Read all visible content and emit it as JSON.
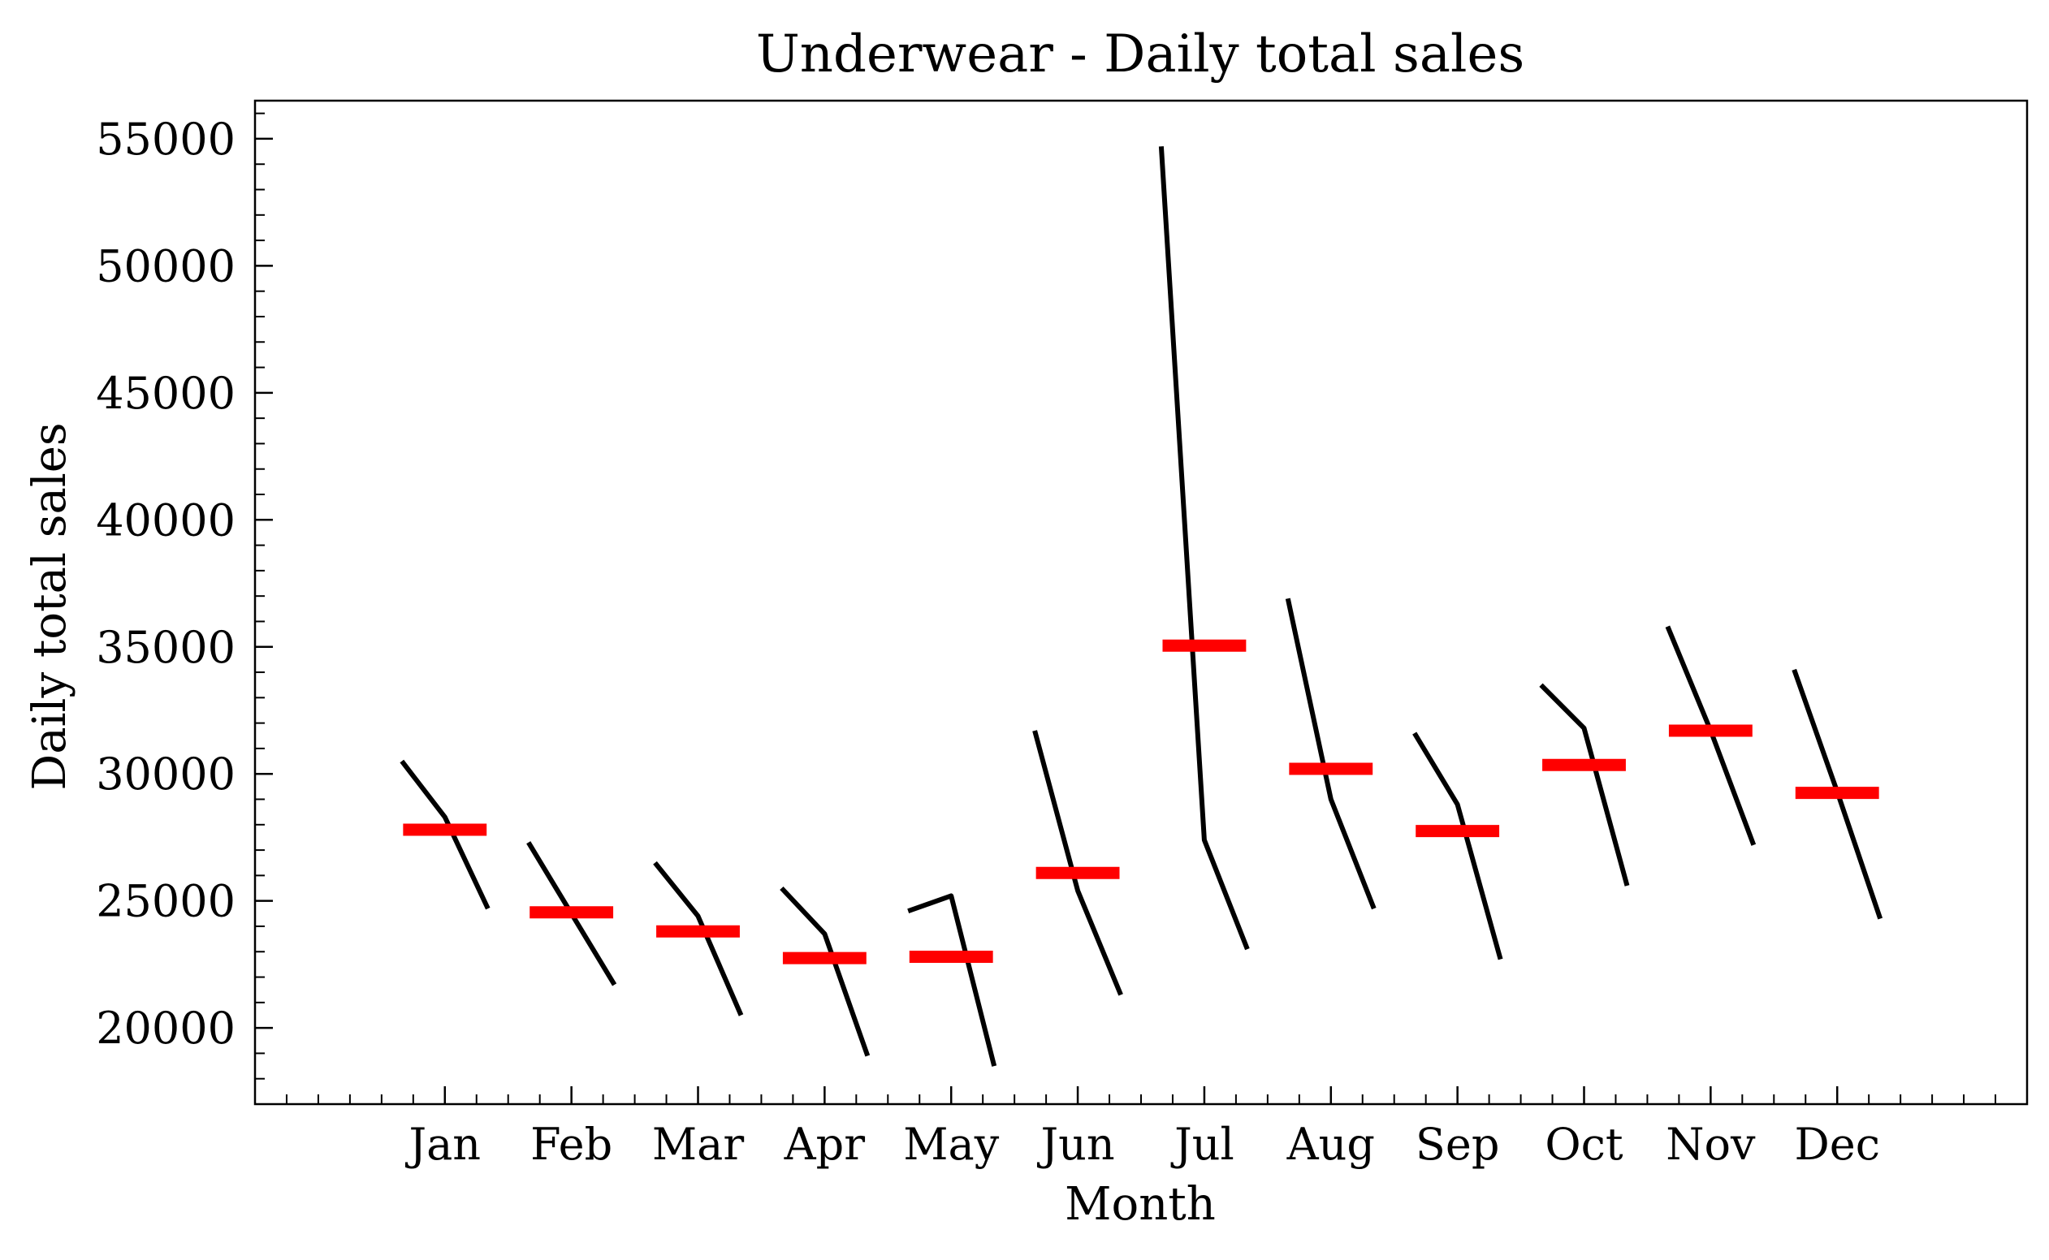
{
  "chart_data": {
    "type": "line",
    "subtype": "month_plot",
    "title": "Underwear - Daily total sales",
    "xlabel": "Month",
    "ylabel": "Daily total sales",
    "categories": [
      "Jan",
      "Feb",
      "Mar",
      "Apr",
      "May",
      "Jun",
      "Jul",
      "Aug",
      "Sep",
      "Oct",
      "Nov",
      "Dec"
    ],
    "yticks": [
      20000,
      25000,
      30000,
      35000,
      40000,
      45000,
      50000,
      55000
    ],
    "ylim": [
      17000,
      56500
    ],
    "grid": false,
    "series": [
      {
        "values": [
          [
            30500,
            28300,
            24700
          ],
          [
            27300,
            24500,
            21700
          ],
          [
            26500,
            24400,
            20500
          ],
          [
            25500,
            23700,
            18900
          ],
          [
            24600,
            25200,
            18500
          ],
          [
            31700,
            25400,
            21300
          ],
          [
            54700,
            27400,
            23100
          ],
          [
            36900,
            29000,
            24700
          ],
          [
            31600,
            28800,
            22700
          ],
          [
            33500,
            31800,
            25600
          ],
          [
            35800,
            31700,
            27200
          ],
          [
            34100,
            29300,
            24300
          ]
        ]
      },
      {
        "values": [
          27800,
          24550,
          23800,
          22750,
          22800,
          26100,
          35050,
          30200,
          27750,
          30350,
          31700,
          29250
        ]
      }
    ],
    "colors": {
      "series_line": "#000000",
      "mean_line": "#ff0000"
    }
  }
}
